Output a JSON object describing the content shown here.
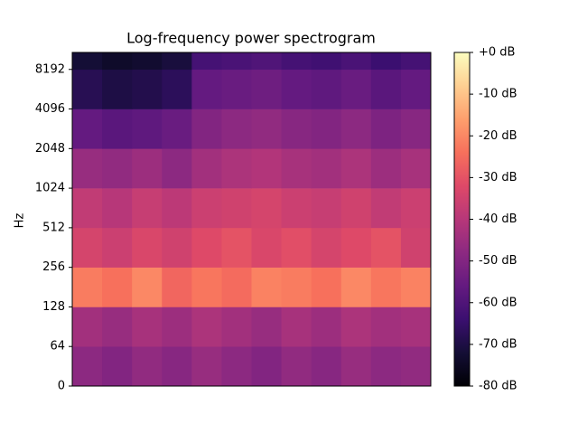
{
  "chart_data": {
    "type": "heatmap",
    "title": "Log-frequency power spectrogram",
    "ylabel": "Hz",
    "yscale": "symlog",
    "linthresh": 64,
    "ylim": [
      0,
      11025
    ],
    "yticks": [
      0,
      64,
      128,
      256,
      512,
      1024,
      2048,
      4096,
      8192
    ],
    "z": [
      [
        -48,
        -50,
        -47,
        -49,
        -46,
        -48,
        -50,
        -47,
        -49,
        -46,
        -48,
        -47
      ],
      [
        -44,
        -46,
        -43,
        -45,
        -42,
        -44,
        -46,
        -43,
        -45,
        -42,
        -44,
        -43
      ],
      [
        -22,
        -24,
        -20,
        -26,
        -23,
        -25,
        -21,
        -22,
        -24,
        -20,
        -23,
        -21
      ],
      [
        -34,
        -36,
        -33,
        -35,
        -32,
        -30,
        -33,
        -31,
        -34,
        -32,
        -30,
        -35
      ],
      [
        -38,
        -40,
        -37,
        -39,
        -36,
        -35,
        -34,
        -36,
        -37,
        -35,
        -38,
        -36
      ],
      [
        -46,
        -47,
        -45,
        -48,
        -44,
        -42,
        -41,
        -43,
        -44,
        -42,
        -45,
        -43
      ],
      [
        -56,
        -58,
        -57,
        -55,
        -50,
        -48,
        -47,
        -49,
        -50,
        -48,
        -51,
        -49
      ],
      [
        -68,
        -70,
        -69,
        -67,
        -56,
        -55,
        -54,
        -56,
        -57,
        -55,
        -58,
        -56
      ],
      [
        -72,
        -74,
        -73,
        -71,
        -62,
        -61,
        -60,
        -62,
        -63,
        -61,
        -64,
        -62
      ]
    ],
    "clim": [
      -80,
      0
    ],
    "colormap": [
      "#000004",
      "#140e36",
      "#3b0f70",
      "#641a80",
      "#8c2981",
      "#b73779",
      "#de4968",
      "#f7705c",
      "#fe9f6d",
      "#fecf92",
      "#fcfdbf"
    ],
    "cticks": [
      {
        "value": 0,
        "label": "+0 dB"
      },
      {
        "value": -10,
        "label": "-10 dB"
      },
      {
        "value": -20,
        "label": "-20 dB"
      },
      {
        "value": -30,
        "label": "-30 dB"
      },
      {
        "value": -40,
        "label": "-40 dB"
      },
      {
        "value": -50,
        "label": "-50 dB"
      },
      {
        "value": -60,
        "label": "-60 dB"
      },
      {
        "value": -70,
        "label": "-70 dB"
      },
      {
        "value": -80,
        "label": "-80 dB"
      }
    ]
  }
}
